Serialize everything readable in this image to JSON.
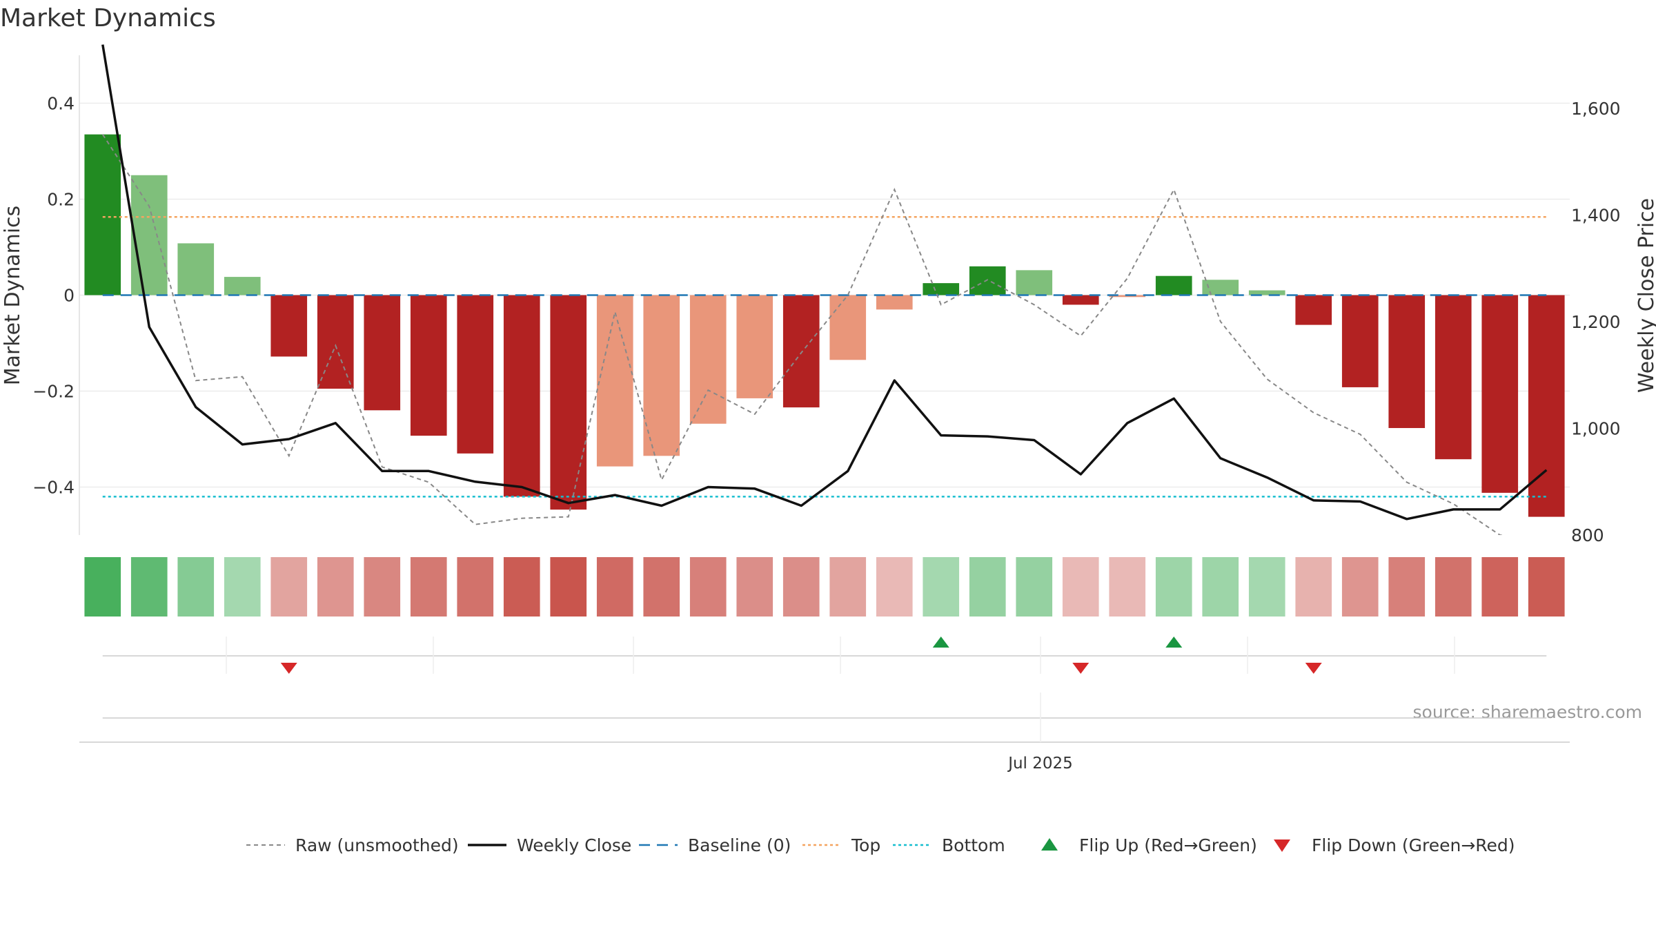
{
  "chart_data": {
    "type": "bar",
    "title": "Market Dynamics",
    "ylabel_left": "Market Dynamics",
    "ylabel_right": "Weekly Close Price",
    "xlabel": "",
    "x_tick_labels": [
      "Jul 2025"
    ],
    "source_text": "source: sharemaestro.com",
    "ylim_left": [
      -0.5,
      0.5
    ],
    "ylim_right": [
      800,
      1700
    ],
    "left_ticks": [
      {
        "value": 0.4,
        "label": "0.4"
      },
      {
        "value": 0.2,
        "label": "0.2"
      },
      {
        "value": 0,
        "label": "0"
      },
      {
        "value": -0.2,
        "label": "−0.2"
      },
      {
        "value": -0.4,
        "label": "−0.4"
      }
    ],
    "right_ticks": [
      {
        "value": 1600,
        "label": "1,600"
      },
      {
        "value": 1400,
        "label": "1,400"
      },
      {
        "value": 1200,
        "label": "1,200"
      },
      {
        "value": 1000,
        "label": "1,000"
      },
      {
        "value": 800,
        "label": "800"
      }
    ],
    "grid": true,
    "legend_position": "bottom",
    "bars": [
      0.335,
      0.25,
      0.108,
      0.038,
      -0.128,
      -0.195,
      -0.24,
      -0.293,
      -0.33,
      -0.42,
      -0.447,
      -0.357,
      -0.335,
      -0.268,
      -0.215,
      -0.234,
      -0.135,
      -0.03,
      0.025,
      0.06,
      0.052,
      -0.02,
      -0.004,
      0.04,
      0.032,
      0.01,
      -0.062,
      -0.192,
      -0.277,
      -0.342,
      -0.412,
      -0.462
    ],
    "raw": [
      0.335,
      0.185,
      -0.178,
      -0.17,
      -0.335,
      -0.105,
      -0.358,
      -0.39,
      -0.478,
      -0.465,
      -0.462,
      -0.035,
      -0.385,
      -0.198,
      -0.248,
      -0.12,
      0.0,
      0.22,
      -0.02,
      0.032,
      -0.02,
      -0.085,
      0.035,
      0.22,
      -0.055,
      -0.175,
      -0.245,
      -0.29,
      -0.39,
      -0.435,
      -0.5,
      -0.52
    ],
    "weekly_close": [
      1720,
      1190,
      1040,
      970,
      980,
      1010,
      920,
      920,
      900,
      890,
      860,
      875,
      855,
      890,
      887,
      855,
      920,
      1090,
      987,
      985,
      978,
      914,
      1010,
      1056,
      944,
      908,
      865,
      863,
      830,
      848,
      848,
      922
    ],
    "baseline": 0,
    "top": 0.163,
    "bottom": -0.42,
    "regime_strip": [
      0.9,
      0.75,
      0.5,
      0.3,
      -0.35,
      -0.45,
      -0.55,
      -0.65,
      -0.7,
      -0.85,
      -0.9,
      -0.75,
      -0.7,
      -0.6,
      -0.5,
      -0.5,
      -0.35,
      -0.2,
      0.3,
      0.4,
      0.4,
      -0.2,
      -0.2,
      0.35,
      0.35,
      0.3,
      -0.25,
      -0.45,
      -0.6,
      -0.7,
      -0.8,
      -0.85
    ],
    "flips": [
      {
        "index": 4,
        "dir": "down"
      },
      {
        "index": 18,
        "dir": "up"
      },
      {
        "index": 21,
        "dir": "down"
      },
      {
        "index": 23,
        "dir": "up"
      },
      {
        "index": 26,
        "dir": "down"
      }
    ],
    "legend": [
      {
        "label": "Raw (unsmoothed)",
        "kind": "dashed-gray"
      },
      {
        "label": "Weekly Close",
        "kind": "solid-black"
      },
      {
        "label": "Baseline (0)",
        "kind": "dashed-blue"
      },
      {
        "label": "Top",
        "kind": "dotted-orange"
      },
      {
        "label": "Bottom",
        "kind": "dotted-cyan"
      },
      {
        "label": "Flip Up (Red→Green)",
        "kind": "triangle-up"
      },
      {
        "label": "Flip Down (Green→Red)",
        "kind": "triangle-down"
      }
    ],
    "colors": {
      "strong_green": "#228b22",
      "light_green": "#7fbf7b",
      "strong_red": "#b22222",
      "light_red": "#e9967a",
      "raw_line": "#888888",
      "close_line": "#111111",
      "baseline": "#1f77b4",
      "top": "#f4a460",
      "bottom": "#17becf",
      "flip_up": "#1a9641",
      "flip_down": "#d62728"
    }
  }
}
